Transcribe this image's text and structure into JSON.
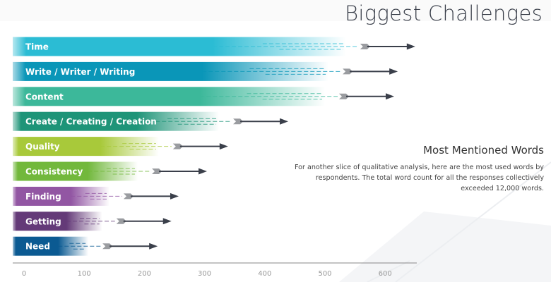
{
  "header": {
    "title": "Biggest Challenges"
  },
  "sidebar": {
    "heading": "Most Mentioned Words",
    "body": "For another slice of qualitative analysis, here are the most used words by respondents. The total word count for all the responses collectively exceeded 12,000 words."
  },
  "chart_data": {
    "type": "bar",
    "orientation": "horizontal",
    "categories": [
      "Time",
      "Write / Writer / Writing",
      "Content",
      "Create / Creating / Creation",
      "Quality",
      "Consistency",
      "Finding",
      "Getting",
      "Need"
    ],
    "values": [
      535,
      506,
      500,
      324,
      224,
      189,
      142,
      130,
      107
    ],
    "colors": [
      "#2bbcd4",
      "#0a96b8",
      "#3cb89a",
      "#1e9478",
      "#a8c93a",
      "#72b83c",
      "#9256a3",
      "#643a78",
      "#0b5a92"
    ],
    "xlim": [
      0,
      650
    ],
    "xticks": [
      "0",
      "100",
      "200",
      "300",
      "400",
      "500",
      "600"
    ],
    "title": "",
    "xlabel": "",
    "ylabel": "",
    "grid": false,
    "legend": "none"
  }
}
